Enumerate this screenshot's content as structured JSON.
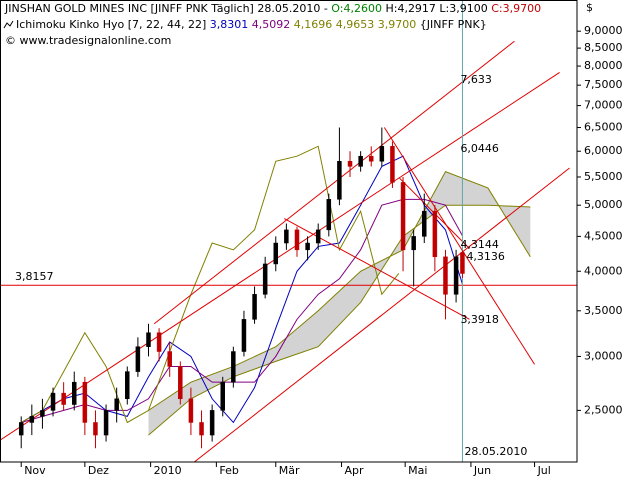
{
  "chart_data": {
    "type": "candlestick",
    "log": true,
    "axis_unit": "$",
    "header": [
      [
        {
          "text": "JINSHAN GOLD MINES INC [JINFF PNK  Täglich] 28.05.2010 - ",
          "color": "#000000"
        },
        {
          "text": "O:4,2600",
          "color": "#008000"
        },
        {
          "text": " H:4,2917 L:3,9100 ",
          "color": "#000000"
        },
        {
          "text": "C:3,9700",
          "color": "#c00000"
        }
      ],
      [
        {
          "text": "Ichimoku Kinko Hyo [7, 22, 44, 22] ",
          "color": "#000000"
        },
        {
          "text": "3,8301",
          "color": "#0000c0"
        },
        {
          "text": " 4,5092",
          "color": "#800080"
        },
        {
          "text": " 4,1696 4,9653 3,9700",
          "color": "#808000"
        },
        {
          "text": " {JINFF PNK}",
          "color": "#000000"
        }
      ],
      [
        {
          "text": "© www.tradesignalonline.com",
          "color": "#000000"
        }
      ]
    ],
    "xlim": [
      -10,
      262
    ],
    "xticks": [
      {
        "value": 0,
        "label": "Nov"
      },
      {
        "value": 30,
        "label": "Dez"
      },
      {
        "value": 61,
        "label": "2010"
      },
      {
        "value": 92,
        "label": "Feb"
      },
      {
        "value": 120,
        "label": "Mär"
      },
      {
        "value": 151,
        "label": "Apr"
      },
      {
        "value": 181,
        "label": "Mai"
      },
      {
        "value": 212,
        "label": "Jun"
      },
      {
        "value": 242,
        "label": "Jul"
      }
    ],
    "ylim": [
      2.1,
      10
    ],
    "yticks": [
      {
        "value": 2.5,
        "label": "2,5000"
      },
      {
        "value": 3,
        "label": "3,0000"
      },
      {
        "value": 3.5,
        "label": "3,5000"
      },
      {
        "value": 4,
        "label": "4,0000"
      },
      {
        "value": 4.5,
        "label": "4,5000"
      },
      {
        "value": 5,
        "label": "5,0000"
      },
      {
        "value": 5.5,
        "label": "5,5000"
      },
      {
        "value": 6,
        "label": "6,0000"
      },
      {
        "value": 6.5,
        "label": "6,5000"
      },
      {
        "value": 7,
        "label": "7,0000"
      },
      {
        "value": 7.5,
        "label": "7,5000"
      },
      {
        "value": 8,
        "label": "8,0000"
      },
      {
        "value": 8.5,
        "label": "8,5000"
      },
      {
        "value": 9,
        "label": "9,0000"
      }
    ],
    "up_color": "#000000",
    "down_color": "#c00000",
    "candles": {
      "x": [
        0,
        5,
        10,
        15,
        20,
        25,
        30,
        35,
        40,
        45,
        50,
        55,
        60,
        65,
        70,
        75,
        80,
        85,
        90,
        95,
        100,
        105,
        110,
        115,
        120,
        125,
        130,
        135,
        140,
        145,
        150,
        155,
        160,
        165,
        170,
        175,
        180,
        185,
        190,
        195,
        200,
        205,
        208
      ],
      "open": [
        2.3,
        2.4,
        2.45,
        2.5,
        2.65,
        2.55,
        2.75,
        2.4,
        2.3,
        2.5,
        2.6,
        2.85,
        3.1,
        3.25,
        3.05,
        2.9,
        2.6,
        2.4,
        2.3,
        2.5,
        2.75,
        3.05,
        3.4,
        3.7,
        4.1,
        4.4,
        4.6,
        4.3,
        4.4,
        4.6,
        5.1,
        5.8,
        5.7,
        5.9,
        5.8,
        6.1,
        5.4,
        4.3,
        4.5,
        4.9,
        4.2,
        3.7,
        4.26
      ],
      "high": [
        2.45,
        2.55,
        2.6,
        2.7,
        2.75,
        2.85,
        2.8,
        2.5,
        2.55,
        2.7,
        2.9,
        3.2,
        3.35,
        3.3,
        3.15,
        2.95,
        2.7,
        2.5,
        2.55,
        2.8,
        3.1,
        3.5,
        3.8,
        4.2,
        4.5,
        4.7,
        4.65,
        4.5,
        4.7,
        5.2,
        6.5,
        6.0,
        6.0,
        6.1,
        6.5,
        6.2,
        5.5,
        4.6,
        5.2,
        5.0,
        4.3,
        4.3,
        4.2917
      ],
      "low": [
        2.2,
        2.3,
        2.35,
        2.45,
        2.5,
        2.5,
        2.3,
        2.2,
        2.25,
        2.4,
        2.55,
        2.8,
        3.0,
        2.95,
        2.8,
        2.55,
        2.3,
        2.2,
        2.25,
        2.45,
        2.7,
        3.0,
        3.35,
        3.65,
        4.0,
        4.3,
        4.2,
        4.15,
        4.3,
        4.5,
        5.0,
        5.5,
        5.6,
        5.7,
        5.7,
        5.3,
        4.0,
        3.8,
        4.4,
        4.0,
        3.4,
        3.6,
        3.91
      ],
      "close": [
        2.4,
        2.45,
        2.5,
        2.65,
        2.55,
        2.75,
        2.4,
        2.3,
        2.5,
        2.6,
        2.85,
        3.1,
        3.25,
        3.05,
        2.9,
        2.6,
        2.4,
        2.3,
        2.5,
        2.75,
        3.05,
        3.4,
        3.7,
        4.1,
        4.4,
        4.6,
        4.3,
        4.4,
        4.6,
        5.1,
        5.8,
        5.7,
        5.9,
        5.8,
        6.1,
        5.4,
        4.3,
        4.5,
        4.9,
        4.2,
        3.7,
        4.2,
        3.97
      ]
    },
    "lines": [
      {
        "color": "#0000c0",
        "x": [
          0,
          10,
          20,
          30,
          40,
          50,
          60,
          70,
          80,
          90,
          100,
          110,
          120,
          130,
          140,
          150,
          160,
          170,
          180,
          190,
          200,
          208
        ],
        "values": [
          2.4,
          2.5,
          2.6,
          2.65,
          2.5,
          2.45,
          2.8,
          3.15,
          3.0,
          2.6,
          2.4,
          2.7,
          3.3,
          4.0,
          4.35,
          4.4,
          5.0,
          5.7,
          5.9,
          5.0,
          4.6,
          3.83
        ]
      },
      {
        "color": "#800080",
        "x": [
          0,
          10,
          20,
          30,
          40,
          50,
          60,
          70,
          80,
          90,
          100,
          110,
          120,
          130,
          140,
          150,
          160,
          170,
          180,
          190,
          200,
          208
        ],
        "values": [
          2.4,
          2.45,
          2.5,
          2.55,
          2.5,
          2.5,
          2.6,
          2.9,
          2.9,
          2.75,
          2.75,
          2.75,
          3.0,
          3.4,
          3.7,
          3.9,
          4.3,
          5.0,
          5.1,
          5.1,
          5.0,
          4.51
        ]
      },
      {
        "color": "#808000",
        "x": [
          0,
          10,
          20,
          30,
          40,
          50,
          60,
          70,
          80,
          90,
          100,
          110,
          120,
          130,
          140,
          150,
          160,
          170,
          178
        ],
        "values": [
          2.4,
          2.5,
          2.85,
          3.25,
          2.9,
          2.4,
          2.5,
          3.05,
          3.7,
          4.4,
          4.3,
          4.6,
          5.8,
          5.9,
          6.1,
          4.3,
          4.9,
          3.7,
          3.97
        ]
      }
    ],
    "cloud": {
      "color": "#808000",
      "fill": "#c8c8c8",
      "x": [
        60,
        80,
        100,
        120,
        140,
        160,
        180,
        200,
        220,
        240
      ],
      "span_a": [
        2.5,
        2.75,
        2.9,
        3.1,
        3.5,
        4.0,
        4.3,
        5.6,
        5.3,
        4.2
      ],
      "span_b": [
        2.3,
        2.6,
        2.8,
        2.95,
        3.1,
        3.6,
        4.5,
        5.0,
        5.0,
        4.97
      ]
    },
    "trendlines": [
      {
        "x": [
          62.7,
          232.5
        ],
        "values": [
          3.35,
          8.7
        ]
      },
      {
        "x": [
          -10,
          253.8
        ],
        "values": [
          2.26,
          7.83
        ]
      },
      {
        "x": [
          81.6,
          258.5
        ],
        "values": [
          2.1,
          5.67
        ]
      },
      {
        "x": [
          171.2,
          242
        ],
        "values": [
          6.5,
          2.92
        ]
      },
      {
        "x": [
          124,
          211.3
        ],
        "values": [
          4.78,
          3.4
        ]
      },
      {
        "x": [
          178.3,
          211.3
        ],
        "values": [
          5.48,
          4.32
        ]
      }
    ],
    "trend_color": "#e00000",
    "hline": {
      "value": 3.8157,
      "label": "3,8157"
    },
    "marker_date": {
      "x": 208,
      "label": "28.05.2010",
      "color": "#5fa8a8"
    },
    "annotations": [
      {
        "value": 7.633,
        "label": "7,633"
      },
      {
        "value": 6.0446,
        "label": "6,0446"
      },
      {
        "value": 4.3144,
        "label": "4,3144"
      },
      {
        "value": 4.3136,
        "label": "4,3136"
      },
      {
        "value": 3.3918,
        "label": "3,3918"
      }
    ]
  }
}
